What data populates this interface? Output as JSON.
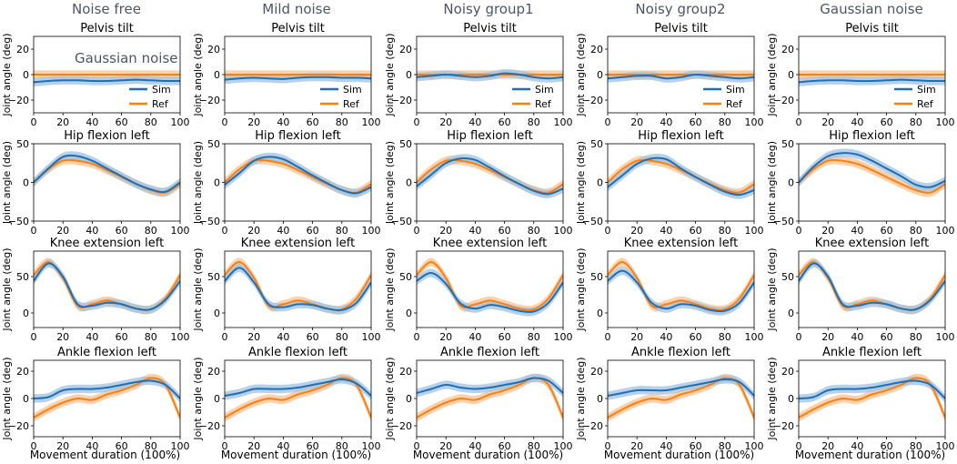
{
  "columns": [
    "Noise free",
    "Mild noise",
    "Noisy group1",
    "Noisy group2",
    "Gaussian noise"
  ],
  "annotation": "Gaussian noise",
  "colors": {
    "sim": "#1f6fb5",
    "ref": "#ff7f0e",
    "sim_band": "#9ec2e2",
    "ref_band": "#fbc28f"
  },
  "axis_labels": {
    "y": "Joint angle (deg)",
    "x": "Movement duration (100%)"
  },
  "x_ticks": [
    "0",
    "20",
    "40",
    "60",
    "80",
    "100"
  ],
  "legend": {
    "sim": "Sim",
    "ref": "Ref"
  },
  "chart_data": [
    {
      "type": "line",
      "title": "Pelvis tilt",
      "x": [
        0,
        10,
        20,
        30,
        40,
        50,
        60,
        70,
        80,
        90,
        100
      ],
      "ylim": [
        -30,
        30
      ],
      "y_ticks": [
        "20",
        "0",
        "−20"
      ],
      "y_tick_values": [
        20,
        0,
        -20
      ],
      "ref": [
        0,
        0,
        0,
        0,
        0,
        0,
        0,
        0,
        0,
        0,
        0
      ],
      "sim": [
        [
          -6,
          -5,
          -4.5,
          -4.5,
          -5,
          -5,
          -4.5,
          -4,
          -4.5,
          -5,
          -5
        ],
        [
          -4,
          -3,
          -2.5,
          -3,
          -3.5,
          -2.5,
          -2,
          -2,
          -2.5,
          -2.5,
          -3
        ],
        [
          -2,
          -1,
          0,
          -1,
          -2,
          -1,
          1,
          0,
          -2,
          -3,
          -2
        ],
        [
          -3,
          -2,
          -1,
          -1,
          -3,
          -2,
          0,
          -1,
          -2,
          -3,
          -2
        ],
        [
          -6,
          -5,
          -4.5,
          -4.5,
          -5,
          -5,
          -4.5,
          -4,
          -4.5,
          -5,
          -5
        ]
      ]
    },
    {
      "type": "line",
      "title": "Hip flexion left",
      "x": [
        0,
        10,
        20,
        30,
        40,
        50,
        60,
        70,
        80,
        90,
        100
      ],
      "ylim": [
        -50,
        50
      ],
      "y_ticks": [
        "50",
        "0",
        "−50"
      ],
      "y_tick_values": [
        50,
        0,
        -50
      ],
      "ref": [
        0,
        17,
        28,
        28,
        24,
        16,
        7,
        -2,
        -10,
        -13,
        -2
      ],
      "sim": [
        [
          0,
          18,
          33,
          34,
          28,
          18,
          8,
          -2,
          -9,
          -12,
          0
        ],
        [
          -3,
          12,
          28,
          33,
          30,
          20,
          9,
          -1,
          -10,
          -14,
          -6
        ],
        [
          -5,
          10,
          25,
          31,
          29,
          19,
          8,
          -2,
          -11,
          -15,
          -8
        ],
        [
          -6,
          9,
          24,
          31,
          30,
          18,
          7,
          -3,
          -12,
          -16,
          -10
        ],
        [
          0,
          20,
          34,
          38,
          36,
          28,
          18,
          8,
          -3,
          -6,
          2
        ]
      ]
    },
    {
      "type": "line",
      "title": "Knee extension left",
      "x": [
        0,
        10,
        20,
        30,
        40,
        50,
        60,
        70,
        80,
        90,
        100
      ],
      "ylim": [
        -20,
        85
      ],
      "y_ticks": [
        "50",
        "0"
      ],
      "y_tick_values": [
        50,
        0
      ],
      "ref": [
        52,
        70,
        48,
        10,
        12,
        17,
        12,
        6,
        5,
        20,
        52
      ],
      "sim": [
        [
          44,
          68,
          50,
          12,
          10,
          14,
          12,
          6,
          5,
          18,
          44
        ],
        [
          44,
          62,
          42,
          12,
          8,
          12,
          11,
          6,
          4,
          14,
          42
        ],
        [
          44,
          55,
          40,
          13,
          6,
          11,
          8,
          3,
          2,
          14,
          42
        ],
        [
          44,
          58,
          42,
          14,
          6,
          12,
          10,
          4,
          3,
          14,
          42
        ],
        [
          44,
          68,
          50,
          12,
          10,
          14,
          12,
          6,
          5,
          18,
          44
        ]
      ]
    },
    {
      "type": "line",
      "title": "Ankle flexion left",
      "x": [
        0,
        10,
        20,
        30,
        40,
        50,
        60,
        70,
        80,
        90,
        100
      ],
      "ylim": [
        -28,
        28
      ],
      "y_ticks": [
        "20",
        "0",
        "−20"
      ],
      "y_tick_values": [
        20,
        0,
        -20
      ],
      "ref": [
        -14,
        -8,
        -3,
        0,
        -1,
        3,
        6,
        10,
        15,
        10,
        -14
      ],
      "sim": [
        [
          0,
          1,
          6,
          7,
          7,
          8,
          10,
          12,
          13,
          10,
          0
        ],
        [
          2,
          4,
          7,
          7,
          7,
          8,
          10,
          12,
          14,
          11,
          2
        ],
        [
          4,
          7,
          10,
          8,
          7,
          8,
          10,
          12,
          15,
          13,
          4
        ],
        [
          2,
          4,
          6,
          6,
          6,
          8,
          10,
          12,
          14,
          12,
          2
        ],
        [
          0,
          1,
          6,
          7,
          7,
          8,
          10,
          12,
          13,
          10,
          0
        ]
      ]
    }
  ]
}
